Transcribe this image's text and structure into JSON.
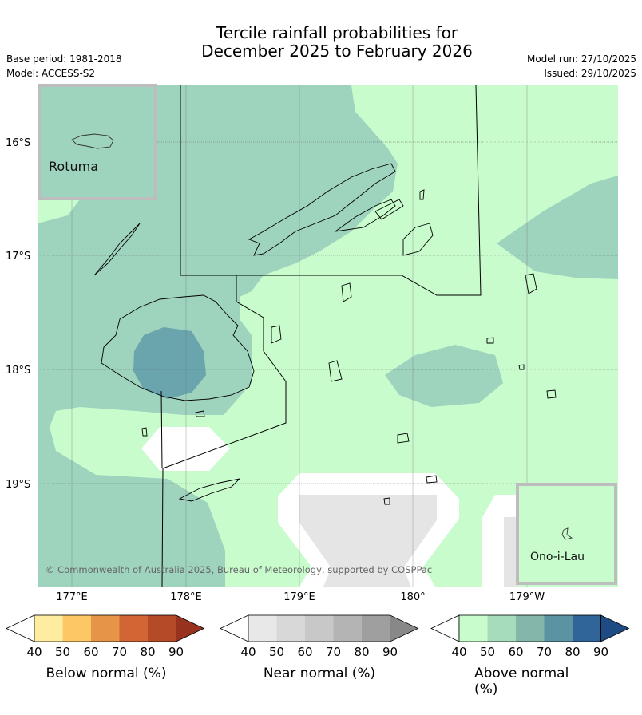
{
  "title": {
    "line1": "Tercile rainfall probabilities for",
    "line2": "December 2025 to February 2026"
  },
  "meta": {
    "base_period": "Base period: 1981-2018",
    "model": "Model: ACCESS-S2",
    "model_run": "Model run: 27/10/2025",
    "issued": "Issued: 29/10/2025"
  },
  "map": {
    "lat_labels": [
      "16°S",
      "17°S",
      "18°S",
      "19°S"
    ],
    "lon_labels": [
      "177°E",
      "178°E",
      "179°E",
      "180°",
      "179°W"
    ],
    "insets": {
      "rotuma": "Rotuma",
      "ono_i_lau": "Ono-i-Lau"
    },
    "copyright": "© Commonwealth of Australia 2025, Bureau of Meteorology, supported by COSPPac",
    "colors": {
      "above_50": "#c8fccc",
      "above_60": "#9ed3be",
      "above_70": "#6aa4ac",
      "near_40": "#ffffff",
      "near_50": "#e5e5e5",
      "inset_border": "#bdbdbd"
    }
  },
  "colorbars": [
    {
      "label": "Below normal (%)",
      "ticks": [
        "40",
        "50",
        "60",
        "70",
        "80",
        "90"
      ],
      "colors": [
        "#ffffff",
        "#feeda0",
        "#fdc864",
        "#e69548",
        "#d16534",
        "#b44a27",
        "#96321e"
      ]
    },
    {
      "label": "Near normal (%)",
      "ticks": [
        "40",
        "50",
        "60",
        "70",
        "80",
        "90"
      ],
      "colors": [
        "#ffffff",
        "#e8e8e8",
        "#d8d8d8",
        "#c8c8c8",
        "#b4b4b4",
        "#9f9f9f",
        "#888888"
      ]
    },
    {
      "label": "Above normal (%)",
      "ticks": [
        "40",
        "50",
        "60",
        "70",
        "80",
        "90"
      ],
      "colors": [
        "#ffffff",
        "#c8fccc",
        "#a6dbbc",
        "#85b6aa",
        "#5b93a2",
        "#30659a",
        "#1e4b84"
      ]
    }
  ]
}
